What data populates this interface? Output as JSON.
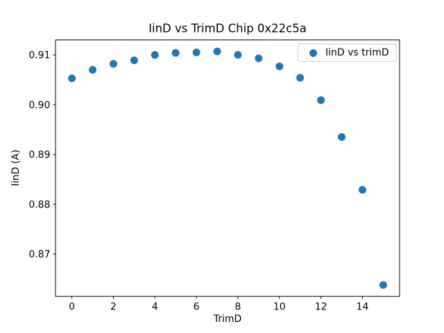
{
  "figure": {
    "background": "#ffffff",
    "frame_color": "#000000"
  },
  "chart_data": {
    "type": "scatter",
    "title": "IinD vs TrimD Chip 0x22c5a",
    "xlabel": "TrimD",
    "ylabel": "IinD (A)",
    "grid": false,
    "xlim": [
      -0.79,
      15.79
    ],
    "ylim": [
      0.8615,
      0.913
    ],
    "xticks": [
      0,
      2,
      4,
      6,
      8,
      10,
      12,
      14
    ],
    "yticks": [
      0.87,
      0.88,
      0.89,
      0.9,
      0.91
    ],
    "ytick_decimals": 2,
    "legend": {
      "position": "upper right",
      "entries": [
        "IinD vs trimD"
      ]
    },
    "series": [
      {
        "name": "IinD vs trimD",
        "color": "#1f77b4",
        "marker": "circle",
        "x": [
          0,
          1,
          2,
          3,
          4,
          5,
          6,
          7,
          8,
          9,
          10,
          11,
          12,
          13,
          14,
          15
        ],
        "y": [
          0.9053,
          0.907,
          0.9082,
          0.9089,
          0.91,
          0.9104,
          0.9105,
          0.9107,
          0.91,
          0.9093,
          0.9077,
          0.9054,
          0.9009,
          0.8935,
          0.8829,
          0.8638
        ]
      }
    ]
  }
}
